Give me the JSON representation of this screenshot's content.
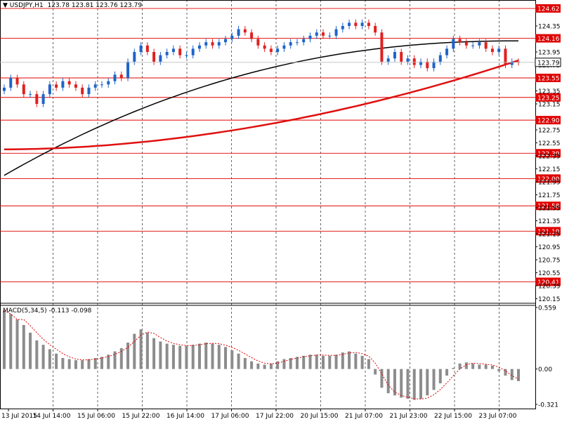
{
  "header": {
    "symbol_label": "USDJPY,H1",
    "ohlc_text": "123.78 123.81 123.76 123.79",
    "indicator_label": "MACD(5,34,5)",
    "indicator_values": "-0.113 -0.098"
  },
  "colors": {
    "background": "#ffffff",
    "bull_candle": "#1e64c8",
    "bear_candle": "#e02020",
    "grid": "#000000",
    "level_line": "#e00000",
    "ma_fast": "#000000",
    "ma_slow": "#e01010",
    "macd_hist": "#8c8c8c",
    "macd_signal": "#e00000",
    "price_tag_bg": "#e00000",
    "current_price_bg": "#ffffff"
  },
  "chart_data": {
    "type": "candlestick",
    "symbol": "USDJPY",
    "timeframe": "H1",
    "ylim": [
      120.08,
      124.75
    ],
    "x_ticks": [
      "13 Jul 2015",
      "14 Jul 14:00",
      "15 Jul 06:00",
      "15 Jul 22:00",
      "16 Jul 14:00",
      "17 Jul 06:00",
      "17 Jul 22:00",
      "20 Jul 15:00",
      "21 Jul 07:00",
      "21 Jul 23:00",
      "22 Jul 15:00",
      "23 Jul 07:00"
    ],
    "y_ticks": [
      "124.35",
      "124.16",
      "123.95",
      "123.75",
      "123.55",
      "123.35",
      "123.15",
      "122.90",
      "122.75",
      "122.55",
      "122.35",
      "122.15",
      "121.95",
      "121.75",
      "121.55",
      "121.35",
      "121.15",
      "120.95",
      "120.75",
      "120.55",
      "120.35",
      "120.15"
    ],
    "horizontal_levels": [
      "124.62",
      "124.16",
      "123.55",
      "123.25",
      "122.90",
      "122.39",
      "122.00",
      "121.58",
      "121.19",
      "120.41"
    ],
    "current_price": "123.79",
    "close": [
      123.4,
      123.55,
      123.45,
      123.3,
      123.3,
      123.15,
      123.3,
      123.45,
      123.4,
      123.5,
      123.45,
      123.4,
      123.3,
      123.4,
      123.45,
      123.45,
      123.5,
      123.6,
      123.55,
      123.8,
      123.95,
      124.05,
      123.95,
      123.8,
      123.9,
      123.95,
      124.0,
      123.9,
      123.9,
      124.0,
      124.05,
      124.1,
      124.05,
      124.1,
      124.15,
      124.2,
      124.3,
      124.25,
      124.15,
      124.05,
      124.0,
      123.95,
      124.0,
      124.05,
      124.1,
      124.1,
      124.15,
      124.2,
      124.25,
      124.2,
      124.2,
      124.3,
      124.35,
      124.4,
      124.35,
      124.4,
      124.35,
      124.25,
      123.8,
      123.85,
      123.95,
      123.8,
      123.85,
      123.75,
      123.8,
      123.7,
      123.8,
      123.9,
      124.0,
      124.15,
      124.1,
      124.05,
      124.05,
      124.1,
      124.0,
      123.95,
      124.0,
      123.75,
      123.8,
      123.79
    ],
    "ma_fast_endpoints": [
      122.05,
      124.12
    ],
    "ma_slow_endpoints": [
      122.45,
      123.82
    ],
    "macd": {
      "label": "MACD(5,34,5)",
      "ylim": [
        -0.321,
        0.559
      ],
      "y_ticks": [
        "0.559",
        "0.00",
        "-0.321"
      ],
      "histogram": [
        0.53,
        0.5,
        0.45,
        0.4,
        0.33,
        0.26,
        0.22,
        0.18,
        0.14,
        0.1,
        0.09,
        0.08,
        0.08,
        0.09,
        0.1,
        0.11,
        0.13,
        0.16,
        0.19,
        0.24,
        0.32,
        0.36,
        0.33,
        0.28,
        0.25,
        0.23,
        0.22,
        0.21,
        0.21,
        0.22,
        0.23,
        0.24,
        0.23,
        0.22,
        0.2,
        0.17,
        0.14,
        0.1,
        0.07,
        0.05,
        0.04,
        0.05,
        0.07,
        0.09,
        0.1,
        0.11,
        0.12,
        0.13,
        0.13,
        0.12,
        0.12,
        0.13,
        0.15,
        0.16,
        0.14,
        0.12,
        0.09,
        -0.05,
        -0.17,
        -0.22,
        -0.24,
        -0.26,
        -0.27,
        -0.28,
        -0.27,
        -0.24,
        -0.19,
        -0.13,
        -0.06,
        0.01,
        0.05,
        0.06,
        0.05,
        0.04,
        0.04,
        0.03,
        -0.02,
        -0.06,
        -0.1,
        -0.11
      ]
    }
  },
  "axis": {
    "price_ticks": [
      "124.35",
      "123.95",
      "123.75",
      "123.35",
      "123.15",
      "122.75",
      "122.55",
      "122.35",
      "122.15",
      "121.95",
      "121.75",
      "121.55",
      "121.35",
      "121.15",
      "120.95",
      "120.75",
      "120.55",
      "120.35",
      "120.15"
    ],
    "time_labels": [
      "13 Jul 2015",
      "14 Jul 14:00",
      "15 Jul 06:00",
      "15 Jul 22:00",
      "16 Jul 14:00",
      "17 Jul 06:00",
      "17 Jul 22:00",
      "20 Jul 15:00",
      "21 Jul 07:00",
      "21 Jul 23:00",
      "22 Jul 15:00",
      "23 Jul 07:00"
    ]
  }
}
